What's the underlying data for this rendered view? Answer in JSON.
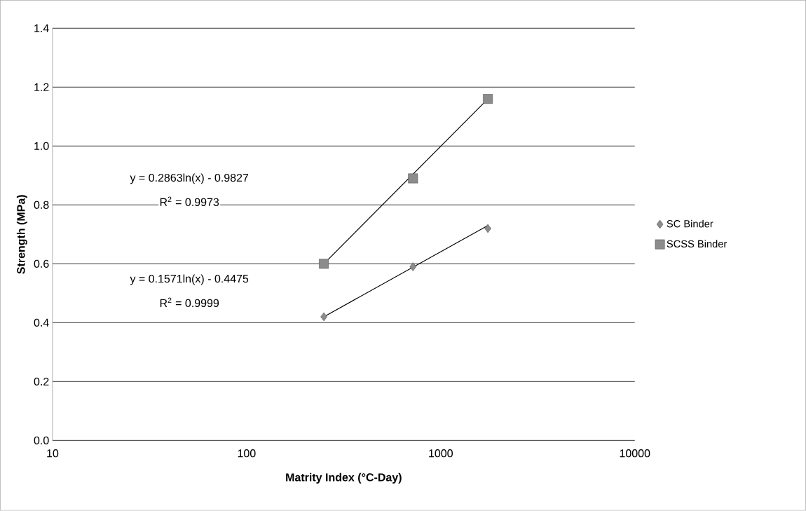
{
  "chart_data": {
    "type": "scatter",
    "xlabel": "Matrity Index (°C-Day)",
    "ylabel": "Strength (MPa)",
    "log": "x",
    "xlim": [
      10,
      10000
    ],
    "xticks": [
      10,
      100,
      1000,
      10000
    ],
    "ylim": [
      0,
      1.4
    ],
    "yticks": [
      {
        "value": 0,
        "label": "0.0"
      },
      {
        "value": 0.2,
        "label": "0.2"
      },
      {
        "value": 0.4,
        "label": "0.4"
      },
      {
        "value": 0.6,
        "label": "0.6"
      },
      {
        "value": 0.8,
        "label": "0.8"
      },
      {
        "value": 1.0,
        "label": "1.0"
      },
      {
        "value": 1.2,
        "label": "1.2"
      },
      {
        "value": 1.4,
        "label": "1.4"
      }
    ],
    "grid": "y",
    "legend": "right",
    "series": [
      {
        "name": "SC Binder",
        "marker": "diamond",
        "color": "#8c8c8c",
        "x": [
          250,
          720,
          1750
        ],
        "values": [
          0.42,
          0.59,
          0.72
        ]
      },
      {
        "name": "SCSS Binder",
        "marker": "square",
        "color": "#8c8c8c",
        "x": [
          250,
          720,
          1750
        ],
        "values": [
          0.6,
          0.89,
          1.16
        ]
      },
      {
        "type": "line",
        "marker": "none",
        "line_style": "solid",
        "color": "#000000",
        "x": [
          250,
          1750
        ],
        "values": [
          0.42,
          0.73
        ]
      },
      {
        "type": "line",
        "marker": "none",
        "line_style": "solid",
        "color": "#000000",
        "x": [
          250,
          1750
        ],
        "values": [
          0.6,
          1.16
        ]
      }
    ],
    "annotations": [
      "y = 0.2863ln(x) - 0.9827",
      "R$^{2}$ = 0.9973",
      "y = 0.1571ln(x) - 0.4475",
      "R$^{2}$ = 0.9999"
    ]
  }
}
